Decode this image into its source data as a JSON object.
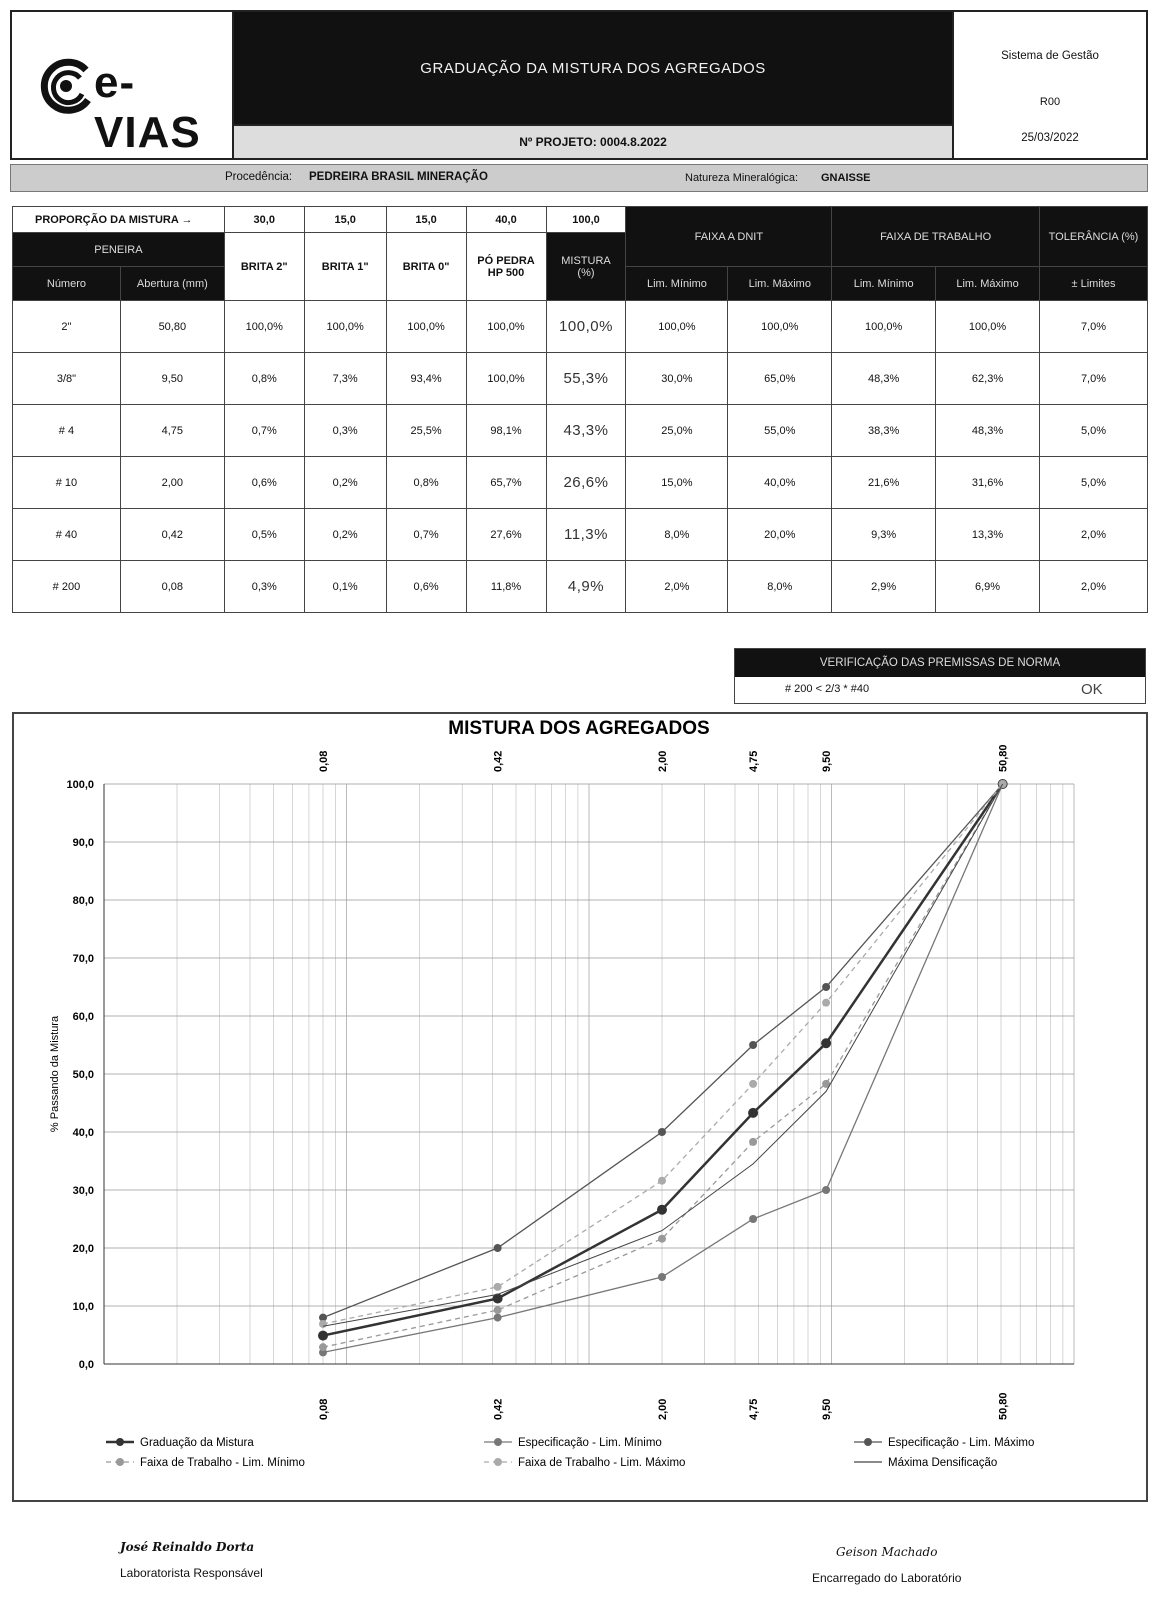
{
  "header": {
    "logo_text": "e-VIAS",
    "title": "GRADUAÇÃO DA MISTURA DOS AGREGADOS",
    "project": "Nº PROJETO: 0004.8.2022",
    "system": "Sistema de Gestão",
    "revision": "R00",
    "date": "25/03/2022"
  },
  "origin": {
    "proc_label": "Procedência:",
    "proc_value": "PEDREIRA BRASIL MINERAÇÃO",
    "nature_label": "Natureza Mineralógica:",
    "nature_value": "GNAISSE"
  },
  "table": {
    "proportion_label": "PROPORÇÃO DA MISTURA →",
    "proportions": [
      "30,0",
      "15,0",
      "15,0",
      "40,0",
      "100,0"
    ],
    "sieve_header": "PENEIRA",
    "number_header": "Número",
    "opening_header": "Abertura (mm)",
    "materials": [
      "BRITA 2\"",
      "BRITA 1\"",
      "BRITA 0\"",
      "PÓ PEDRA HP 500"
    ],
    "mix_header": "MISTURA (%)",
    "dnit_header": "FAIXA A DNIT",
    "work_header": "FAIXA DE TRABALHO",
    "tol_header": "TOLERÂNCIA (%)",
    "lim_min": "Lim. Mínimo",
    "lim_max": "Lim. Máximo",
    "limits": "± Limites",
    "rows": [
      {
        "num": "2\"",
        "open": "50,80",
        "b2": "100,0%",
        "b1": "100,0%",
        "b0": "100,0%",
        "po": "100,0%",
        "mix": "100,0%",
        "dmin": "100,0%",
        "dmax": "100,0%",
        "wmin": "100,0%",
        "wmax": "100,0%",
        "tol": "7,0%"
      },
      {
        "num": "3/8\"",
        "open": "9,50",
        "b2": "0,8%",
        "b1": "7,3%",
        "b0": "93,4%",
        "po": "100,0%",
        "mix": "55,3%",
        "dmin": "30,0%",
        "dmax": "65,0%",
        "wmin": "48,3%",
        "wmax": "62,3%",
        "tol": "7,0%"
      },
      {
        "num": "# 4",
        "open": "4,75",
        "b2": "0,7%",
        "b1": "0,3%",
        "b0": "25,5%",
        "po": "98,1%",
        "mix": "43,3%",
        "dmin": "25,0%",
        "dmax": "55,0%",
        "wmin": "38,3%",
        "wmax": "48,3%",
        "tol": "5,0%"
      },
      {
        "num": "# 10",
        "open": "2,00",
        "b2": "0,6%",
        "b1": "0,2%",
        "b0": "0,8%",
        "po": "65,7%",
        "mix": "26,6%",
        "dmin": "15,0%",
        "dmax": "40,0%",
        "wmin": "21,6%",
        "wmax": "31,6%",
        "tol": "5,0%"
      },
      {
        "num": "# 40",
        "open": "0,42",
        "b2": "0,5%",
        "b1": "0,2%",
        "b0": "0,7%",
        "po": "27,6%",
        "mix": "11,3%",
        "dmin": "8,0%",
        "dmax": "20,0%",
        "wmin": "9,3%",
        "wmax": "13,3%",
        "tol": "2,0%"
      },
      {
        "num": "# 200",
        "open": "0,08",
        "b2": "0,3%",
        "b1": "0,1%",
        "b0": "0,6%",
        "po": "11,8%",
        "mix": "4,9%",
        "dmin": "2,0%",
        "dmax": "8,0%",
        "wmin": "2,9%",
        "wmax": "6,9%",
        "tol": "2,0%"
      }
    ]
  },
  "verification": {
    "title": "VERIFICAÇÃO DAS PREMISSAS DE NORMA",
    "rule": "# 200 < 2/3 * #40",
    "result": "OK"
  },
  "chart_data": {
    "type": "line",
    "title": "MISTURA DOS AGREGADOS",
    "ylabel": "% Passando da Mistura",
    "xlabel": "",
    "x_scale": "log",
    "ylim": [
      0,
      100
    ],
    "yticks": [
      "0,0",
      "10,0",
      "20,0",
      "30,0",
      "40,0",
      "50,0",
      "60,0",
      "70,0",
      "80,0",
      "90,0",
      "100,0"
    ],
    "x": [
      0.08,
      0.42,
      2.0,
      4.75,
      9.5,
      50.8
    ],
    "x_labels": [
      "0,08",
      "0,42",
      "2,00",
      "4,75",
      "9,50",
      "50,80"
    ],
    "series": [
      {
        "name": "Graduação da Mistura",
        "values": [
          4.9,
          11.3,
          26.6,
          43.3,
          55.3,
          100
        ],
        "color": "#333333",
        "style": "solid-bold"
      },
      {
        "name": "Especificação - Lim. Mínimo",
        "values": [
          2.0,
          8.0,
          15.0,
          25.0,
          30.0,
          100
        ],
        "color": "#777777",
        "style": "solid"
      },
      {
        "name": "Especificação - Lim. Máximo",
        "values": [
          8.0,
          20.0,
          40.0,
          55.0,
          65.0,
          100
        ],
        "color": "#555555",
        "style": "solid"
      },
      {
        "name": "Faixa de Trabalho - Lim. Mínimo",
        "values": [
          2.9,
          9.3,
          21.6,
          38.3,
          48.3,
          100
        ],
        "color": "#999999",
        "style": "dashed"
      },
      {
        "name": "Faixa de Trabalho - Lim. Máximo",
        "values": [
          6.9,
          13.3,
          31.6,
          48.3,
          62.3,
          100
        ],
        "color": "#aaaaaa",
        "style": "dashed"
      },
      {
        "name": "Máxima Densificação",
        "values": [
          6.5,
          12.0,
          23.0,
          34.5,
          47.0,
          100
        ],
        "color": "#444444",
        "style": "thin"
      }
    ],
    "legend_position": "bottom",
    "grid": true
  },
  "signatures": [
    {
      "name": "José Reinaldo Dorta",
      "role": "Laboratorista Responsável"
    },
    {
      "name": "Geison Machado",
      "role": "Encarregado do Laboratório"
    }
  ]
}
